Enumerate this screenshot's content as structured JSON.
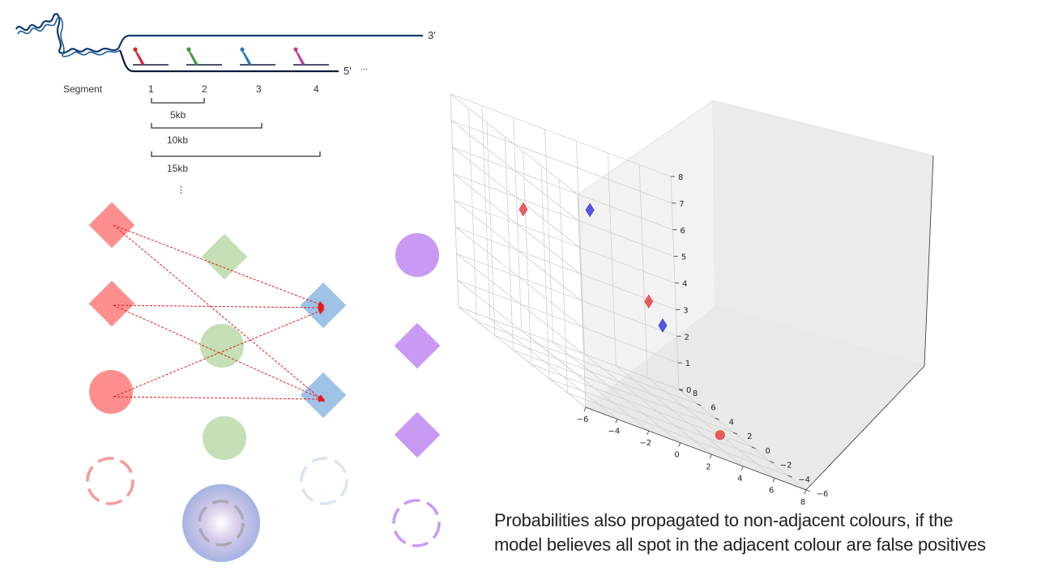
{
  "dna_diagram": {
    "end_top": "3'",
    "end_bottom": "5'",
    "ellipsis": "...",
    "segment_label": "Segment",
    "segments": [
      "1",
      "2",
      "3",
      "4"
    ],
    "probe_colors": [
      "#d9262e",
      "#3a9a3a",
      "#2a7ab8",
      "#c23a9a"
    ],
    "strand_color": "#0d3a6e",
    "spans": [
      "5kb",
      "10kb",
      "15kb"
    ],
    "more": "⋮"
  },
  "spot_graph": {
    "colors": {
      "red": "#ff8f8f",
      "green": "#c5dfb6",
      "blue": "#9fc3e6",
      "purple": "#c99af4",
      "arrow": "#e41a1c"
    }
  },
  "chart_data": {
    "type": "scatter",
    "projection": "3d",
    "xlim": [
      -6,
      8
    ],
    "ylim": [
      -6,
      8
    ],
    "zlim": [
      0,
      8
    ],
    "xticks": [
      "−6",
      "−4",
      "−2",
      "0",
      "2",
      "4",
      "6",
      "8"
    ],
    "yticks": [
      "−6",
      "−4",
      "−2",
      "0",
      "2",
      "4",
      "6",
      "8"
    ],
    "zticks": [
      "0",
      "1",
      "2",
      "3",
      "4",
      "5",
      "6",
      "7",
      "8"
    ],
    "grid": true,
    "points": [
      {
        "color": "#e64545",
        "marker": "diamond",
        "x": -5,
        "y": 2,
        "z": 5.5
      },
      {
        "color": "#3b3bdf",
        "marker": "diamond",
        "x": 1,
        "y": 5,
        "z": 6
      },
      {
        "color": "#e64545",
        "marker": "diamond",
        "x": 4,
        "y": 4,
        "z": 3.5
      },
      {
        "color": "#3b3bdf",
        "marker": "diamond",
        "x": 2,
        "y": -1,
        "z": 3.5
      },
      {
        "color": "#e64545",
        "marker": "circle",
        "x": 6,
        "y": 0,
        "z": 0
      }
    ]
  },
  "caption": {
    "line1": "Probabilities also propagated to non-adjacent colours, if the",
    "line2": "model believes all spot in the adjacent colour are false positives"
  }
}
